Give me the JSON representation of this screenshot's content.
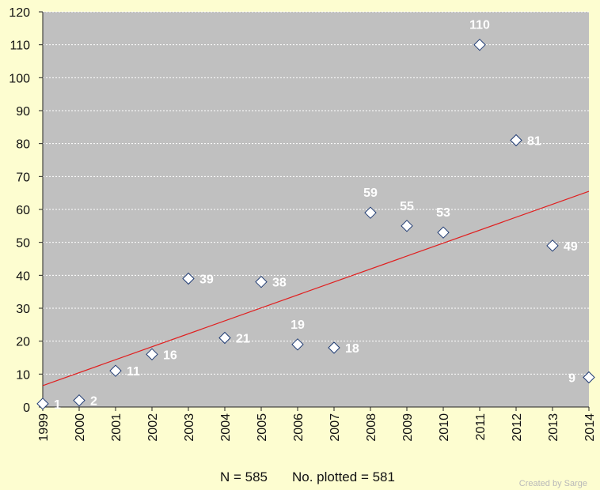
{
  "chart_data": {
    "type": "scatter",
    "title": "",
    "xlabel": "",
    "ylabel": "",
    "x": [
      1999,
      2000,
      2001,
      2002,
      2003,
      2004,
      2005,
      2006,
      2007,
      2008,
      2009,
      2010,
      2011,
      2012,
      2013,
      2014
    ],
    "values": [
      1,
      2,
      11,
      16,
      39,
      21,
      38,
      19,
      18,
      59,
      55,
      53,
      110,
      81,
      49,
      9
    ],
    "data_labels": [
      "1",
      "2",
      "11",
      "16",
      "39",
      "21",
      "38",
      "19",
      "18",
      "59",
      "55",
      "53",
      "110",
      "81",
      "49",
      "9"
    ],
    "xlim": [
      1999,
      2014
    ],
    "ylim": [
      0,
      120
    ],
    "y_ticks": [
      "0",
      "10",
      "20",
      "30",
      "40",
      "50",
      "60",
      "70",
      "80",
      "90",
      "100",
      "110",
      "120"
    ],
    "x_ticks": [
      "1999",
      "2000",
      "2001",
      "2002",
      "2003",
      "2004",
      "2005",
      "2006",
      "2007",
      "2008",
      "2009",
      "2010",
      "2011",
      "2012",
      "2013",
      "2014"
    ],
    "trendline": {
      "type": "linear",
      "y_start": 6.5,
      "y_end": 65.5,
      "color": "#e02020"
    },
    "grid": true,
    "grid_style": "dashed-horizontal",
    "plot_background": "#c0c0c0",
    "page_background": "#fdfdd0",
    "marker_color": "#ffffff",
    "marker_outline": "#1f3b73",
    "label_color": "#ffffff"
  },
  "footer": {
    "n_text": "N = 585",
    "plotted_text": "No. plotted = 581"
  },
  "credit": "Created by Sarge"
}
